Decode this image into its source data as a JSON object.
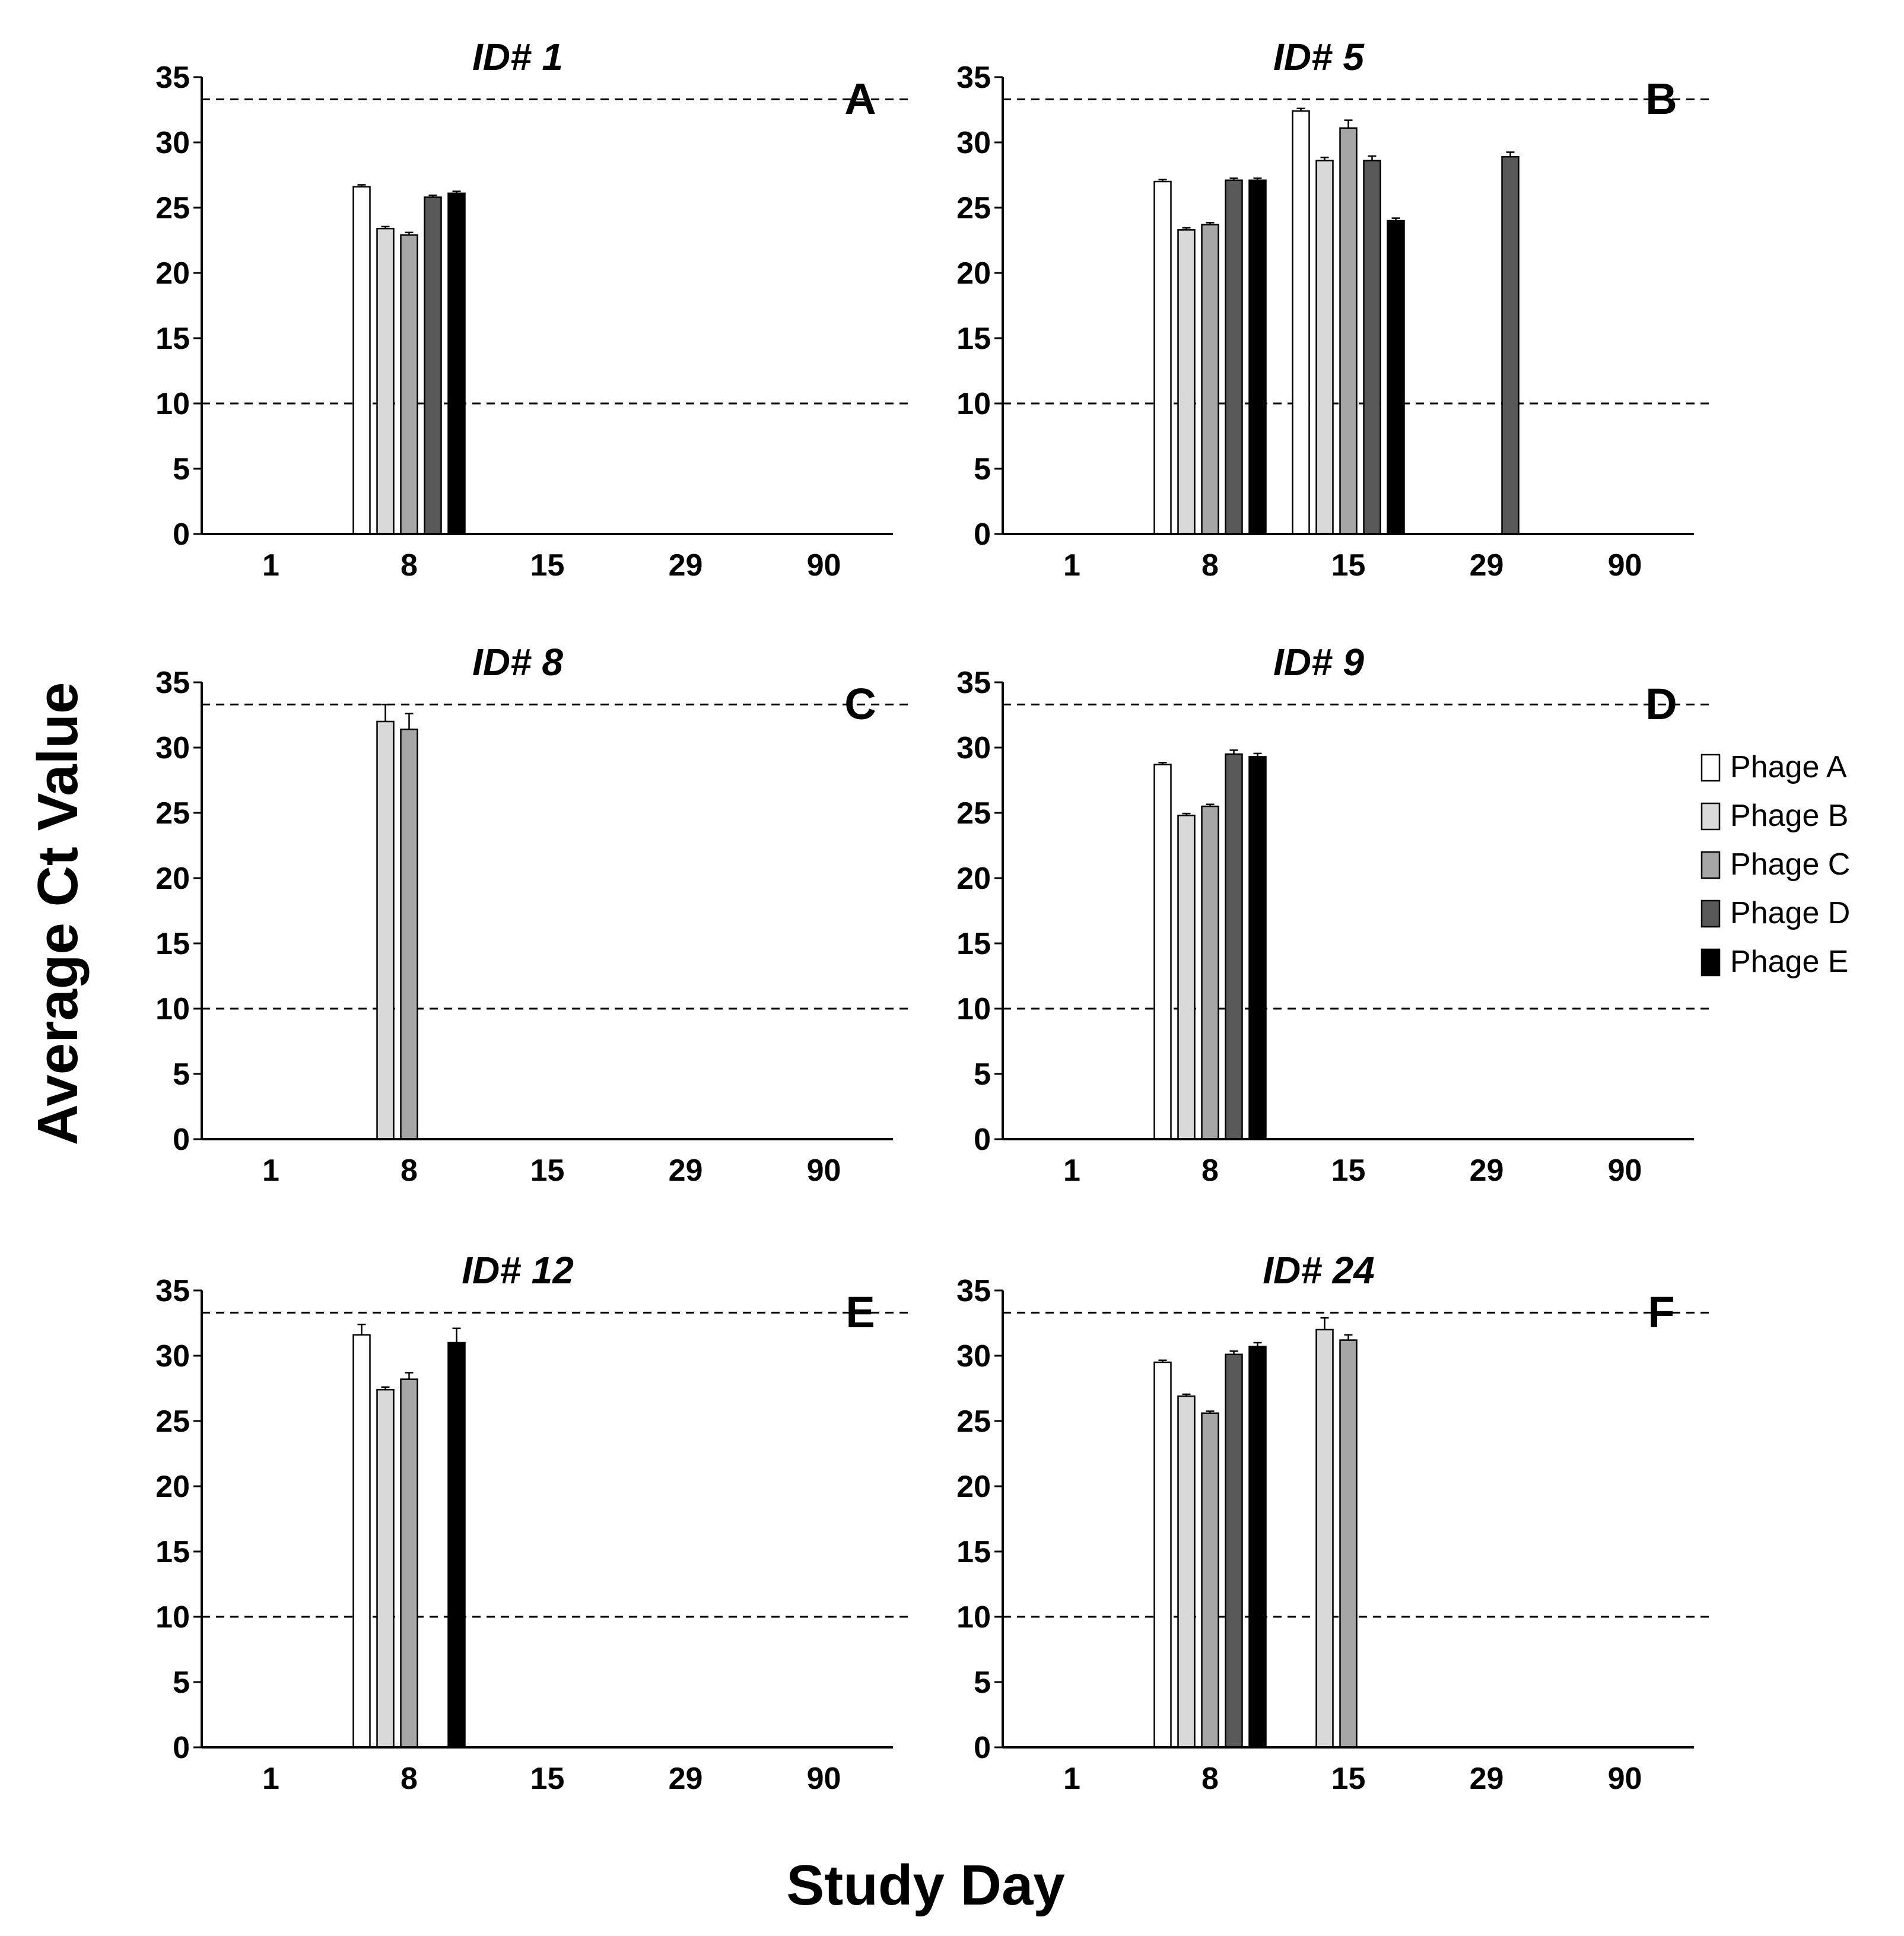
{
  "chart_data": {
    "type": "bar",
    "ylabel": "Average Ct Value",
    "xlabel": "Study Day",
    "ylim": [
      0,
      35
    ],
    "yticks": [
      0,
      5,
      10,
      15,
      20,
      25,
      30,
      35
    ],
    "categories": [
      "1",
      "8",
      "15",
      "29",
      "90"
    ],
    "reference_lines": [
      10,
      33.3
    ],
    "legend": {
      "placement": "right",
      "entries": [
        {
          "name": "Phage A",
          "color": "#ffffff"
        },
        {
          "name": "Phage B",
          "color": "#d9d9d9"
        },
        {
          "name": "Phage C",
          "color": "#a6a6a6"
        },
        {
          "name": "Phage D",
          "color": "#595959"
        },
        {
          "name": "Phage E",
          "color": "#000000"
        }
      ]
    },
    "panels": [
      {
        "letter": "A",
        "title": "ID# 1",
        "values": [
          [
            null,
            null,
            null,
            null,
            null
          ],
          [
            26.6,
            23.4,
            22.9,
            25.8,
            26.1
          ],
          [
            null,
            null,
            null,
            null,
            null
          ],
          [
            null,
            null,
            null,
            null,
            null
          ],
          [
            null,
            null,
            null,
            null,
            null
          ]
        ],
        "errors": [
          [
            null,
            null,
            null,
            null,
            null
          ],
          [
            0.15,
            0.15,
            0.2,
            0.15,
            0.15
          ],
          [
            null,
            null,
            null,
            null,
            null
          ],
          [
            null,
            null,
            null,
            null,
            null
          ],
          [
            null,
            null,
            null,
            null,
            null
          ]
        ]
      },
      {
        "letter": "B",
        "title": "ID# 5",
        "values": [
          [
            null,
            null,
            null,
            null,
            null
          ],
          [
            27.0,
            23.3,
            23.7,
            27.1,
            27.1
          ],
          [
            32.4,
            28.6,
            31.1,
            28.6,
            24.0
          ],
          [
            null,
            null,
            null,
            28.9,
            null
          ],
          [
            null,
            null,
            null,
            null,
            null
          ]
        ],
        "errors": [
          [
            null,
            null,
            null,
            null,
            null
          ],
          [
            0.15,
            0.15,
            0.15,
            0.15,
            0.15
          ],
          [
            0.2,
            0.25,
            0.6,
            0.35,
            0.2
          ],
          [
            null,
            null,
            null,
            0.35,
            null
          ],
          [
            null,
            null,
            null,
            null,
            null
          ]
        ]
      },
      {
        "letter": "C",
        "title": "ID# 8",
        "values": [
          [
            null,
            null,
            null,
            null,
            null
          ],
          [
            null,
            32.0,
            31.4,
            null,
            null
          ],
          [
            null,
            null,
            null,
            null,
            null
          ],
          [
            null,
            null,
            null,
            null,
            null
          ],
          [
            null,
            null,
            null,
            null,
            null
          ]
        ],
        "errors": [
          [
            null,
            null,
            null,
            null,
            null
          ],
          [
            null,
            1.3,
            1.2,
            null,
            null
          ],
          [
            null,
            null,
            null,
            null,
            null
          ],
          [
            null,
            null,
            null,
            null,
            null
          ],
          [
            null,
            null,
            null,
            null,
            null
          ]
        ]
      },
      {
        "letter": "D",
        "title": "ID# 9",
        "values": [
          [
            null,
            null,
            null,
            null,
            null
          ],
          [
            28.7,
            24.8,
            25.5,
            29.5,
            29.3
          ],
          [
            null,
            null,
            null,
            null,
            null
          ],
          [
            null,
            null,
            null,
            null,
            null
          ],
          [
            null,
            null,
            null,
            null,
            null
          ]
        ],
        "errors": [
          [
            null,
            null,
            null,
            null,
            null
          ],
          [
            0.15,
            0.15,
            0.15,
            0.3,
            0.25
          ],
          [
            null,
            null,
            null,
            null,
            null
          ],
          [
            null,
            null,
            null,
            null,
            null
          ],
          [
            null,
            null,
            null,
            null,
            null
          ]
        ]
      },
      {
        "letter": "E",
        "title": "ID# 12",
        "values": [
          [
            null,
            null,
            null,
            null,
            null
          ],
          [
            31.6,
            27.4,
            28.2,
            null,
            31.0
          ],
          [
            null,
            null,
            null,
            null,
            null
          ],
          [
            null,
            null,
            null,
            null,
            null
          ],
          [
            null,
            null,
            null,
            null,
            null
          ]
        ],
        "errors": [
          [
            null,
            null,
            null,
            null,
            null
          ],
          [
            0.8,
            0.2,
            0.5,
            null,
            1.1
          ],
          [
            null,
            null,
            null,
            null,
            null
          ],
          [
            null,
            null,
            null,
            null,
            null
          ],
          [
            null,
            null,
            null,
            null,
            null
          ]
        ]
      },
      {
        "letter": "F",
        "title": "ID# 24",
        "values": [
          [
            null,
            null,
            null,
            null,
            null
          ],
          [
            29.5,
            26.9,
            25.6,
            30.1,
            30.7
          ],
          [
            null,
            32.0,
            31.2,
            null,
            null
          ],
          [
            null,
            null,
            null,
            null,
            null
          ],
          [
            null,
            null,
            null,
            null,
            null
          ]
        ],
        "errors": [
          [
            null,
            null,
            null,
            null,
            null
          ],
          [
            0.15,
            0.15,
            0.15,
            0.25,
            0.3
          ],
          [
            null,
            0.9,
            0.4,
            null,
            null
          ],
          [
            null,
            null,
            null,
            null,
            null
          ],
          [
            null,
            null,
            null,
            null,
            null
          ]
        ]
      }
    ]
  }
}
